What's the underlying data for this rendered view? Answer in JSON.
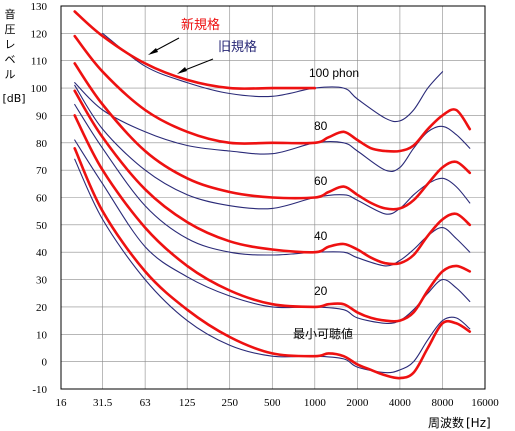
{
  "chart_data": {
    "type": "line",
    "title": "",
    "ylabel_lines": [
      "音",
      "圧",
      "レ",
      "ベ",
      "ル",
      "[dB]"
    ],
    "xlabel": "周波数",
    "xunit": "[Hz]",
    "x_scale": "log2",
    "x_ticks": [
      16,
      31.5,
      63,
      125,
      250,
      500,
      1000,
      2000,
      4000,
      8000,
      16000
    ],
    "x_tick_labels": [
      "16",
      "31.5",
      "63",
      "125",
      "250",
      "500",
      "1000",
      "2000",
      "4000",
      "8000",
      "16000"
    ],
    "xlim": [
      16,
      16000
    ],
    "ylim": [
      -10,
      130
    ],
    "y_ticks": [
      -10,
      0,
      10,
      20,
      30,
      40,
      50,
      60,
      70,
      80,
      90,
      100,
      110,
      120,
      130
    ],
    "y_tick_labels": [
      "-10",
      "0",
      "10",
      "20",
      "30",
      "40",
      "50",
      "60",
      "70",
      "80",
      "90",
      "100",
      "110",
      "120",
      "130"
    ],
    "grid": true,
    "legend": {
      "new_label": "新規格",
      "old_label": "旧規格",
      "new_color": "#ee1111",
      "old_color": "#2a2a78"
    },
    "level_labels": [
      "100 phon",
      "80",
      "60",
      "40",
      "20",
      "最小可聴値"
    ],
    "series": [
      {
        "name": "新規格",
        "phon": "最小可聴値",
        "x": [
          20,
          31.5,
          63,
          125,
          250,
          500,
          1000,
          1250,
          1600,
          2000,
          2500,
          3150,
          4000,
          5000,
          6300,
          8000,
          10000,
          12500
        ],
        "y": [
          78,
          55,
          33,
          19,
          9,
          3,
          2,
          3,
          2,
          -1,
          -3,
          -5,
          -6,
          -4,
          5,
          14,
          14,
          11
        ]
      },
      {
        "name": "新規格",
        "phon": "20",
        "x": [
          20,
          31.5,
          63,
          125,
          250,
          500,
          1000,
          1250,
          1600,
          2000,
          2500,
          3150,
          4000,
          5000,
          6300,
          8000,
          10000,
          12500
        ],
        "y": [
          90,
          70,
          49,
          35,
          26,
          21,
          20,
          21,
          21,
          18,
          16,
          15,
          15,
          18,
          26,
          33,
          35,
          33
        ]
      },
      {
        "name": "新規格",
        "phon": "40",
        "x": [
          20,
          31.5,
          63,
          125,
          250,
          500,
          1000,
          1250,
          1600,
          2000,
          2500,
          3150,
          4000,
          5000,
          6300,
          8000,
          10000,
          12500
        ],
        "y": [
          99,
          82,
          63,
          51,
          44,
          41,
          40,
          42,
          43,
          41,
          38,
          36,
          36,
          39,
          46,
          52,
          54,
          50
        ]
      },
      {
        "name": "新規格",
        "phon": "60",
        "x": [
          20,
          31.5,
          63,
          125,
          250,
          500,
          1000,
          1250,
          1600,
          2000,
          2500,
          3150,
          4000,
          5000,
          6300,
          8000,
          10000,
          12500
        ],
        "y": [
          109,
          94,
          77,
          67,
          62,
          60,
          60,
          62,
          64,
          61,
          58,
          56,
          56,
          59,
          65,
          71,
          73,
          69
        ]
      },
      {
        "name": "新規格",
        "phon": "80",
        "x": [
          20,
          31.5,
          63,
          125,
          250,
          500,
          1000,
          1250,
          1600,
          2000,
          2500,
          3150,
          4000,
          5000,
          6300,
          8000,
          10000,
          12500
        ],
        "y": [
          119,
          106,
          92,
          84,
          80,
          80,
          80,
          82,
          84,
          81,
          78,
          77,
          77,
          79,
          85,
          90,
          92,
          85
        ]
      },
      {
        "name": "新規格",
        "phon": "100",
        "x": [
          20,
          31.5,
          63,
          125,
          250,
          500,
          1000
        ],
        "y": [
          128,
          119,
          109,
          103,
          100,
          100,
          100
        ]
      },
      {
        "name": "旧規格",
        "phon": "最小可聴値",
        "x": [
          20,
          31.5,
          63,
          125,
          250,
          500,
          1000,
          1600,
          2000,
          3150,
          4000,
          5000,
          6300,
          8000,
          10000,
          12500
        ],
        "y": [
          74,
          52,
          30,
          15,
          6,
          2,
          2,
          1,
          -2,
          -4,
          -3,
          0,
          8,
          15,
          16,
          12
        ]
      },
      {
        "name": "旧規格",
        "phon": "20",
        "x": [
          20,
          31.5,
          63,
          125,
          250,
          500,
          1000,
          1600,
          2000,
          3150,
          4000,
          5000,
          6300,
          8000,
          10000,
          12500
        ],
        "y": [
          81,
          65,
          42,
          31,
          24,
          20,
          20,
          19,
          16,
          14,
          15,
          19,
          25,
          30,
          27,
          22
        ]
      },
      {
        "name": "旧規格",
        "phon": "40",
        "x": [
          20,
          31.5,
          63,
          125,
          250,
          500,
          1000,
          1600,
          2000,
          3150,
          4000,
          5000,
          6300,
          8000,
          10000,
          12500
        ],
        "y": [
          94,
          78,
          57,
          45,
          40,
          39,
          40,
          40,
          38,
          35,
          37,
          41,
          46,
          49,
          45,
          40
        ]
      },
      {
        "name": "旧規格",
        "phon": "60",
        "x": [
          20,
          31.5,
          63,
          125,
          250,
          500,
          1000,
          1600,
          2000,
          3150,
          4000,
          5000,
          6300,
          8000,
          10000,
          12500
        ],
        "y": [
          101,
          85,
          70,
          61,
          57,
          56,
          60,
          61,
          59,
          54,
          56,
          61,
          65,
          67,
          64,
          58
        ]
      },
      {
        "name": "旧規格",
        "phon": "80",
        "x": [
          20,
          31.5,
          63,
          125,
          250,
          500,
          1000,
          1600,
          2000,
          3150,
          4000,
          5000,
          6300,
          8000,
          10000,
          12500
        ],
        "y": [
          102,
          92,
          84,
          79,
          77,
          76,
          80,
          80,
          77,
          70,
          71,
          78,
          84,
          86,
          83,
          78
        ]
      },
      {
        "name": "旧規格",
        "phon": "100",
        "x": [
          31.5,
          63,
          125,
          250,
          500,
          1000,
          1600,
          2000,
          3150,
          4000,
          5000,
          6300,
          8000
        ],
        "y": [
          120,
          108,
          102,
          98,
          97,
          100,
          100,
          96,
          89,
          88,
          92,
          100,
          106
        ]
      }
    ]
  }
}
